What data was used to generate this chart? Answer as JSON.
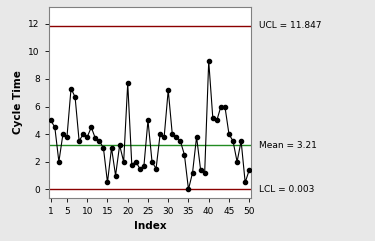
{
  "y_values": [
    5.0,
    4.5,
    2.0,
    4.0,
    3.8,
    7.3,
    6.7,
    3.5,
    4.0,
    3.8,
    4.5,
    3.7,
    3.5,
    3.0,
    0.5,
    3.0,
    1.0,
    3.2,
    2.0,
    7.7,
    1.8,
    2.0,
    1.5,
    1.7,
    5.0,
    2.0,
    1.5,
    4.0,
    3.8,
    7.2,
    4.0,
    3.8,
    3.5,
    2.5,
    0.0,
    1.2,
    3.8,
    1.4,
    1.2,
    9.3,
    5.2,
    5.0,
    6.0,
    6.0,
    4.0,
    3.5,
    2.0,
    3.5,
    0.5,
    1.4
  ],
  "UCL": 11.847,
  "LCL": 0.003,
  "Mean": 3.21,
  "ucl_color": "#8B0000",
  "lcl_color": "#8B0000",
  "mean_color": "#228B22",
  "line_color": "#000000",
  "marker_color": "#000000",
  "xlabel": "Index",
  "ylabel": "Cycle Time",
  "ylim": [
    -0.6,
    13.2
  ],
  "xlim": [
    0.5,
    50.5
  ],
  "xticks": [
    1,
    5,
    10,
    15,
    20,
    25,
    30,
    35,
    40,
    45,
    50
  ],
  "yticks": [
    0,
    2,
    4,
    6,
    8,
    10,
    12
  ],
  "ucl_label": "UCL = 11.847",
  "lcl_label": "LCL = 0.003",
  "mean_label": "Mean = 3.21",
  "bg_color": "#e8e8e8",
  "plot_bg_color": "#ffffff"
}
